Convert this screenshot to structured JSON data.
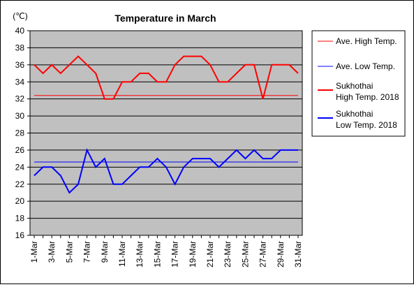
{
  "chart_data": {
    "type": "line",
    "title": "Temperature in March",
    "unit_label": "(℃)",
    "categories": [
      "1-Mar",
      "2-Mar",
      "3-Mar",
      "4-Mar",
      "5-Mar",
      "6-Mar",
      "7-Mar",
      "8-Mar",
      "9-Mar",
      "10-Mar",
      "11-Mar",
      "12-Mar",
      "13-Mar",
      "14-Mar",
      "15-Mar",
      "16-Mar",
      "17-Mar",
      "18-Mar",
      "19-Mar",
      "20-Mar",
      "21-Mar",
      "22-Mar",
      "23-Mar",
      "24-Mar",
      "25-Mar",
      "26-Mar",
      "27-Mar",
      "28-Mar",
      "29-Mar",
      "30-Mar",
      "31-Mar"
    ],
    "tick_labels": [
      "1-Mar",
      "3-Mar",
      "5-Mar",
      "7-Mar",
      "9-Mar",
      "11-Mar",
      "13-Mar",
      "15-Mar",
      "17-Mar",
      "19-Mar",
      "21-Mar",
      "23-Mar",
      "25-Mar",
      "27-Mar",
      "29-Mar",
      "31-Mar"
    ],
    "ylim": [
      16,
      40
    ],
    "yticks": [
      16,
      18,
      20,
      22,
      24,
      26,
      28,
      30,
      32,
      34,
      36,
      38,
      40
    ],
    "grid": true,
    "legend_position": "right",
    "series": [
      {
        "name": "Ave. High Temp.",
        "color": "#ff0000",
        "style": "thin",
        "values": [
          32.4,
          32.4,
          32.4,
          32.4,
          32.4,
          32.4,
          32.4,
          32.4,
          32.4,
          32.4,
          32.4,
          32.4,
          32.4,
          32.4,
          32.4,
          32.4,
          32.4,
          32.4,
          32.4,
          32.4,
          32.4,
          32.4,
          32.4,
          32.4,
          32.4,
          32.4,
          32.4,
          32.4,
          32.4,
          32.4,
          32.4
        ]
      },
      {
        "name": "Ave. Low Temp.",
        "color": "#0000ff",
        "style": "thin",
        "values": [
          24.6,
          24.6,
          24.6,
          24.6,
          24.6,
          24.6,
          24.6,
          24.6,
          24.6,
          24.6,
          24.6,
          24.6,
          24.6,
          24.6,
          24.6,
          24.6,
          24.6,
          24.6,
          24.6,
          24.6,
          24.6,
          24.6,
          24.6,
          24.6,
          24.6,
          24.6,
          24.6,
          24.6,
          24.6,
          24.6,
          24.6
        ]
      },
      {
        "name": "Sukhothai\nHigh Temp. 2018",
        "color": "#ff0000",
        "style": "thick",
        "values": [
          36,
          35,
          36,
          35,
          36,
          37,
          36,
          35,
          32,
          32,
          34,
          34,
          35,
          35,
          34,
          34,
          36,
          37,
          37,
          37,
          36,
          34,
          34,
          35,
          36,
          36,
          32,
          36,
          36,
          36,
          35
        ]
      },
      {
        "name": "Sukhothai\nLow Temp. 2018",
        "color": "#0000ff",
        "style": "thick",
        "values": [
          23,
          24,
          24,
          23,
          21,
          22,
          26,
          24,
          25,
          22,
          22,
          23,
          24,
          24,
          25,
          24,
          22,
          24,
          25,
          25,
          25,
          24,
          25,
          26,
          25,
          26,
          25,
          25,
          26,
          26,
          26
        ]
      }
    ]
  }
}
